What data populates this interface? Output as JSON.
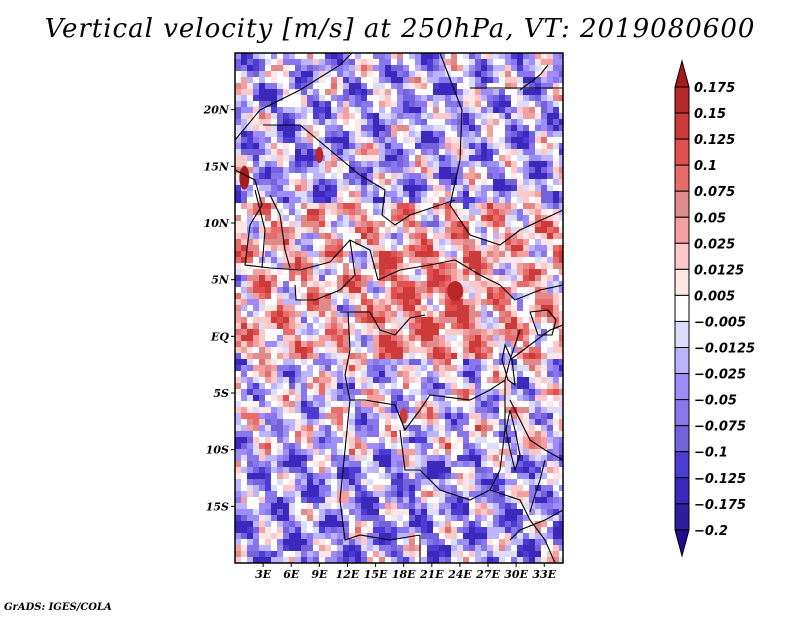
{
  "title": "Vertical velocity [m/s] at 250hPa, VT: 2019080600",
  "credit": "GrADS: IGES/COLA",
  "chart_data": {
    "type": "heatmap",
    "title": "Vertical velocity [m/s] at 250hPa, VT: 2019080600",
    "variable": "Vertical velocity",
    "units": "m/s",
    "level": "250hPa",
    "valid_time": "2019080600",
    "xlabel": "",
    "ylabel": "",
    "x_range_deg": [
      0,
      35
    ],
    "y_range_deg": [
      -20,
      25
    ],
    "xticks": [
      {
        "value": 3,
        "label": "3E"
      },
      {
        "value": 6,
        "label": "6E"
      },
      {
        "value": 9,
        "label": "9E"
      },
      {
        "value": 12,
        "label": "12E"
      },
      {
        "value": 15,
        "label": "15E"
      },
      {
        "value": 18,
        "label": "18E"
      },
      {
        "value": 21,
        "label": "21E"
      },
      {
        "value": 24,
        "label": "24E"
      },
      {
        "value": 27,
        "label": "27E"
      },
      {
        "value": 30,
        "label": "30E"
      },
      {
        "value": 33,
        "label": "33E"
      }
    ],
    "yticks": [
      {
        "value": 20,
        "label": "20N"
      },
      {
        "value": 15,
        "label": "15N"
      },
      {
        "value": 10,
        "label": "10N"
      },
      {
        "value": 5,
        "label": "5N"
      },
      {
        "value": 0,
        "label": "EQ"
      },
      {
        "value": -5,
        "label": "5S"
      },
      {
        "value": -10,
        "label": "10S"
      },
      {
        "value": -15,
        "label": "15S"
      }
    ],
    "colorbar": {
      "placement": "right",
      "levels": [
        "0.175",
        "0.15",
        "0.125",
        "0.1",
        "0.075",
        "0.05",
        "0.025",
        "0.0125",
        "0.005",
        "-0.005",
        "-0.0125",
        "-0.025",
        "-0.05",
        "-0.075",
        "-0.1",
        "-0.125",
        "-0.175",
        "-0.2"
      ],
      "colors": [
        "#a51c1c",
        "#b82828",
        "#cc3a3a",
        "#e24f4f",
        "#e86c6c",
        "#e08a8a",
        "#f4a0a0",
        "#fcc8c8",
        "#fde6e6",
        "#ffffff",
        "#dcdcfc",
        "#bcb4fc",
        "#9e8cf8",
        "#8a76ec",
        "#7462dc",
        "#4c3cd4",
        "#3c28bc",
        "#2e1e9e",
        "#230d8f"
      ]
    },
    "features": {
      "strong_ascent": [
        "coast near 14N 2E",
        "near 4N 24E (South Sudan/CAR)",
        "near 7S 18E"
      ],
      "dominant_sign_north": "mixed, blue bias",
      "dominant_sign_south": "negative (blue)"
    }
  }
}
